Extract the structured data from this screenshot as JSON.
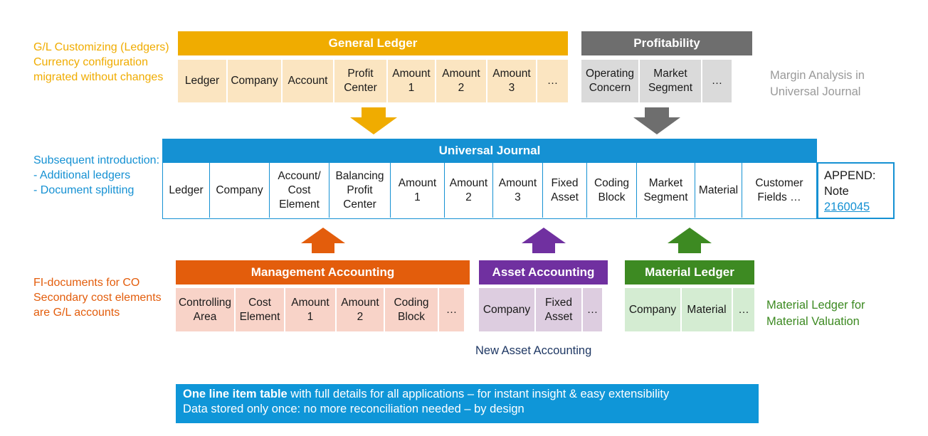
{
  "colors": {
    "gl_header": "#f0ac00",
    "gl_cell": "#fbe5c1",
    "prof_header": "#6e6e6e",
    "prof_cell": "#dadada",
    "uj_header": "#1591d3",
    "mgmt_header": "#e35d0c",
    "mgmt_cell": "#f8d3c8",
    "asset_header": "#7030a0",
    "asset_cell": "#ddcde0",
    "ml_header": "#3d8a22",
    "ml_cell": "#d4ecd2",
    "banner": "#0f96d8"
  },
  "left_notes": {
    "gl": "G/L Customizing (Ledgers)\nCurrency configuration\nmigrated without changes",
    "uj": "Subsequent introduction:\n- Additional ledgers\n- Document splitting",
    "fi": "FI-documents for CO\nSecondary cost elements\nare G/L accounts"
  },
  "general_ledger": {
    "title": "General Ledger",
    "cells": [
      "Ledger",
      "Company",
      "Account",
      "Profit\nCenter",
      "Amount\n1",
      "Amount\n2",
      "Amount\n3",
      "…"
    ]
  },
  "profitability": {
    "title": "Profitability",
    "cells": [
      "Operating\nConcern",
      "Market\nSegment",
      "…"
    ],
    "note": "Margin Analysis in\nUniversal Journal"
  },
  "universal_journal": {
    "title": "Universal Journal",
    "cells": [
      "Ledger",
      "Company",
      "Account/\nCost\nElement",
      "Balancing\nProfit\nCenter",
      "Amount\n1",
      "Amount\n2",
      "Amount\n3",
      "Fixed\nAsset",
      "Coding\nBlock",
      "Market\nSegment",
      "Material",
      "Customer\nFields …"
    ],
    "append_label": "APPEND:",
    "append_note": "Note",
    "append_link": "2160045"
  },
  "management_accounting": {
    "title": "Management Accounting",
    "cells": [
      "Controlling\nArea",
      "Cost\nElement",
      "Amount\n1",
      "Amount\n2",
      "Coding\nBlock",
      "…"
    ]
  },
  "asset_accounting": {
    "title": "Asset Accounting",
    "cells": [
      "Company",
      "Fixed\nAsset",
      "…"
    ],
    "note": "New Asset Accounting"
  },
  "material_ledger": {
    "title": "Material Ledger",
    "cells": [
      "Company",
      "Material",
      "…"
    ],
    "note": "Material Ledger for\nMaterial Valuation"
  },
  "banner": {
    "bold": "One line item table",
    "line1_rest": " with full details for all applications – for instant insight & easy extensibility",
    "line2": "Data stored only once: no more reconciliation needed – by design"
  }
}
